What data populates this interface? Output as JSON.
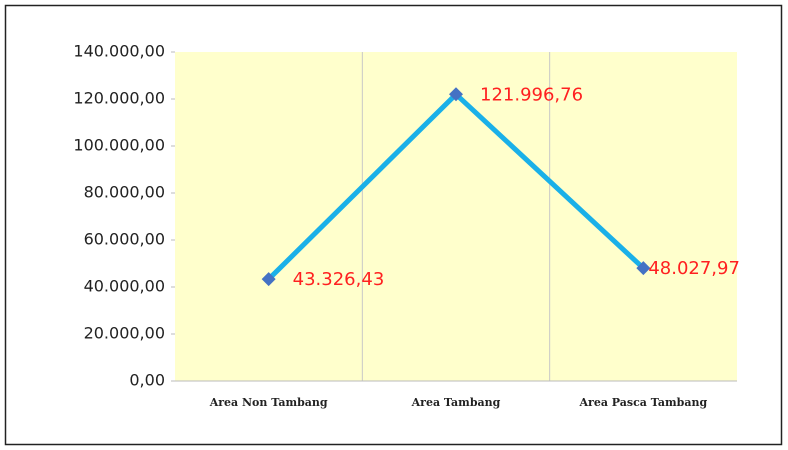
{
  "chart_data": {
    "type": "line",
    "categories": [
      "Area Non Tambang",
      "Area Tambang",
      "Area Pasca Tambang"
    ],
    "series": [
      {
        "name": null,
        "color": "#1ab0e8",
        "marker_color": "#4472c4",
        "values": [
          43326.43,
          121996.76,
          48027.97
        ],
        "value_labels": [
          "43.326,43",
          "121.996,76",
          "48.027,97"
        ]
      }
    ],
    "label_color": "#ff2020",
    "plot_background": "#ffffcc",
    "ylim": [
      0,
      140000
    ],
    "yticks": [
      {
        "value": 0,
        "label": "0,00"
      },
      {
        "value": 20000,
        "label": "20.000,00"
      },
      {
        "value": 40000,
        "label": "40.000,00"
      },
      {
        "value": 60000,
        "label": "60.000,00"
      },
      {
        "value": 80000,
        "label": "80.000,00"
      },
      {
        "value": 100000,
        "label": "100.000,00"
      },
      {
        "value": 120000,
        "label": "120.000,00"
      },
      {
        "value": 140000,
        "label": "140.000,00"
      }
    ],
    "grid": "x"
  }
}
